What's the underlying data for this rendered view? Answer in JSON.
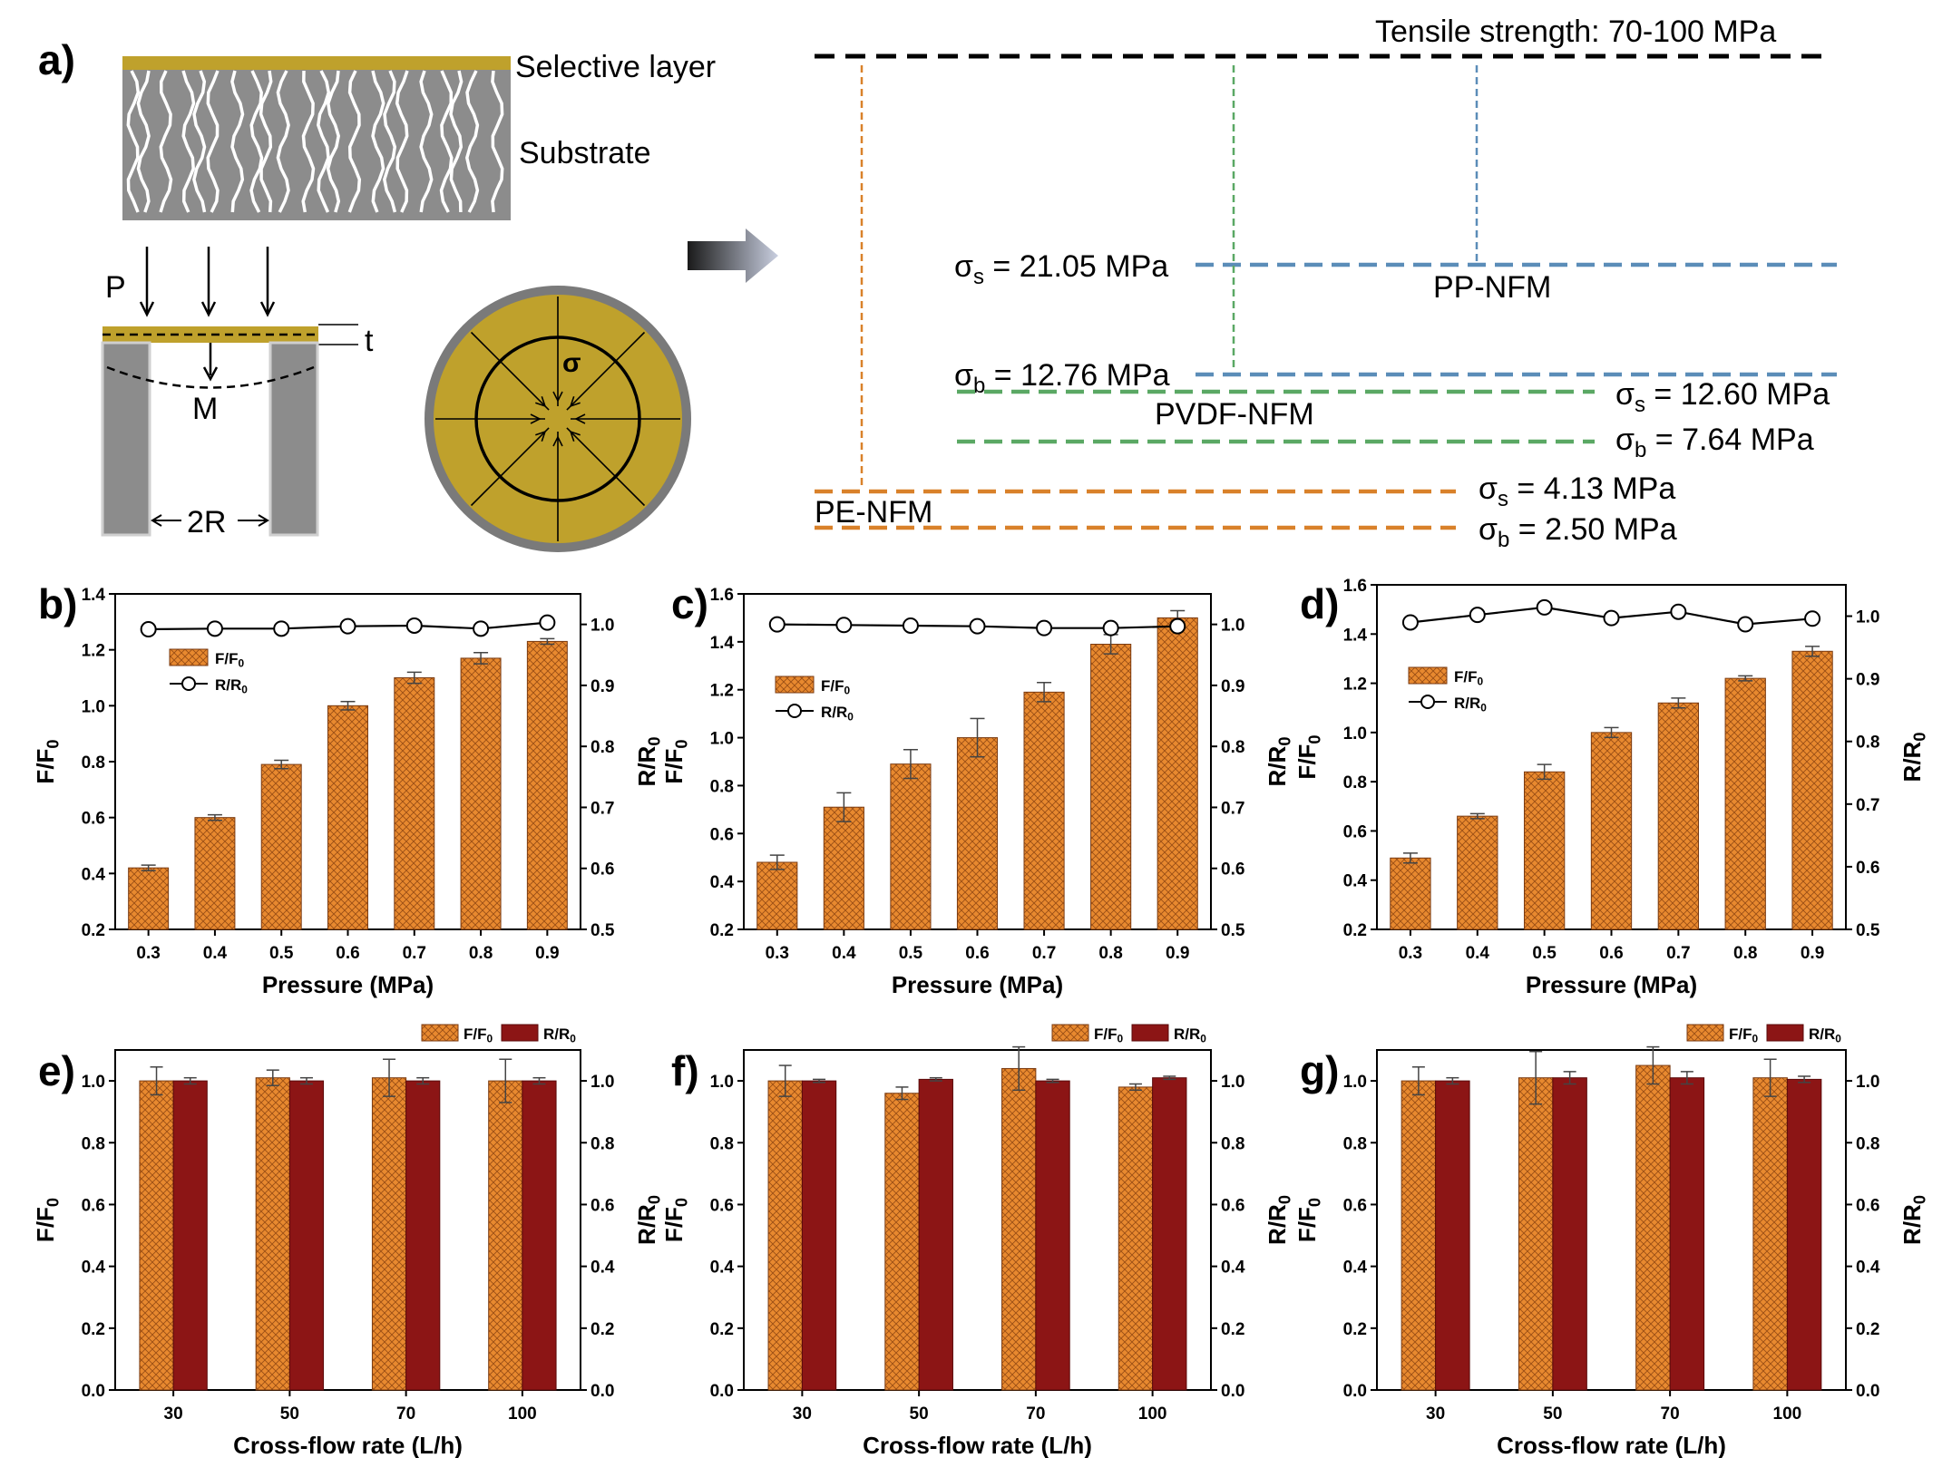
{
  "panel_labels": [
    "a)",
    "b)",
    "c)",
    "d)",
    "e)",
    "f)",
    "g)"
  ],
  "schematic": {
    "selective_layer": "Selective layer",
    "substrate": "Substrate",
    "pressure": "P",
    "thickness": "t",
    "moment": "M",
    "radius": "2R",
    "stress": "σ"
  },
  "strength_diagram": {
    "tensile": "Tensile strength: 70-100 MPa",
    "membranes": [
      {
        "name": "PP-NFM",
        "sigma_s": "σs = 21.05 MPa",
        "sigma_b": "σb = 12.76 MPa",
        "color": "#5b8db8"
      },
      {
        "name": "PVDF-NFM",
        "sigma_s": "σs = 12.60 MPa",
        "sigma_b": "σb = 7.64 MPa",
        "color": "#5aa864"
      },
      {
        "name": "PE-NFM",
        "sigma_s": "σs = 4.13 MPa",
        "sigma_b": "σb = 2.50 MPa",
        "color": "#d9812a"
      }
    ]
  },
  "colors": {
    "bar_orange": "#e8892f",
    "bar_red": "#8c1515",
    "gold": "#bfa12c",
    "gray": "#8c8c8c"
  },
  "chart_data": [
    {
      "panel": "b)",
      "type": "bar",
      "categories": [
        "0.3",
        "0.4",
        "0.5",
        "0.6",
        "0.7",
        "0.8",
        "0.9"
      ],
      "xlabel": "Pressure (MPa)",
      "ylabel": "F/F0",
      "y2label": "R/R0",
      "ylim": [
        0.2,
        1.4
      ],
      "y2lim": [
        0.5,
        1.05
      ],
      "yticks": [
        "0.2",
        "0.4",
        "0.6",
        "0.8",
        "1.0",
        "1.2",
        "1.4"
      ],
      "y2ticks": [
        "0.5",
        "0.6",
        "0.7",
        "0.8",
        "0.9",
        "1.0"
      ],
      "series": [
        {
          "name": "F/F0",
          "type": "bar",
          "values": [
            0.42,
            0.6,
            0.79,
            1.0,
            1.1,
            1.17,
            1.23
          ],
          "errors": [
            0.01,
            0.01,
            0.015,
            0.015,
            0.02,
            0.02,
            0.01
          ]
        },
        {
          "name": "R/R0",
          "type": "line",
          "values": [
            0.992,
            0.993,
            0.993,
            0.997,
            0.998,
            0.993,
            1.003
          ],
          "errors": [
            0.003,
            0.003,
            0.003,
            0.003,
            0.003,
            0.003,
            0.004
          ]
        }
      ],
      "legend": "upper-left"
    },
    {
      "panel": "c)",
      "type": "bar",
      "categories": [
        "0.3",
        "0.4",
        "0.5",
        "0.6",
        "0.7",
        "0.8",
        "0.9"
      ],
      "xlabel": "Pressure (MPa)",
      "ylabel": "F/F0",
      "y2label": "R/R0",
      "ylim": [
        0.2,
        1.6
      ],
      "y2lim": [
        0.5,
        1.05
      ],
      "yticks": [
        "0.2",
        "0.4",
        "0.6",
        "0.8",
        "1.0",
        "1.2",
        "1.4",
        "1.6"
      ],
      "y2ticks": [
        "0.5",
        "0.6",
        "0.7",
        "0.8",
        "0.9",
        "1.0"
      ],
      "series": [
        {
          "name": "F/F0",
          "type": "bar",
          "values": [
            0.48,
            0.71,
            0.89,
            1.0,
            1.19,
            1.39,
            1.5
          ],
          "errors": [
            0.03,
            0.06,
            0.06,
            0.08,
            0.04,
            0.04,
            0.03
          ]
        },
        {
          "name": "R/R0",
          "type": "line",
          "values": [
            1.0,
            0.999,
            0.998,
            0.997,
            0.994,
            0.994,
            0.997
          ],
          "errors": [
            0.003,
            0.003,
            0.003,
            0.003,
            0.003,
            0.003,
            0.003
          ]
        }
      ],
      "legend": "center-left"
    },
    {
      "panel": "d)",
      "type": "bar",
      "categories": [
        "0.3",
        "0.4",
        "0.5",
        "0.6",
        "0.7",
        "0.8",
        "0.9"
      ],
      "xlabel": "Pressure (MPa)",
      "ylabel": "F/F0",
      "y2label": "R/R0",
      "ylim": [
        0.2,
        1.6
      ],
      "y2lim": [
        0.5,
        1.05
      ],
      "yticks": [
        "0.2",
        "0.4",
        "0.6",
        "0.8",
        "1.0",
        "1.2",
        "1.4",
        "1.6"
      ],
      "y2ticks": [
        "0.5",
        "0.6",
        "0.7",
        "0.8",
        "0.9",
        "1.0"
      ],
      "series": [
        {
          "name": "F/F0",
          "type": "bar",
          "values": [
            0.49,
            0.66,
            0.84,
            1.0,
            1.12,
            1.22,
            1.33
          ],
          "errors": [
            0.02,
            0.01,
            0.03,
            0.02,
            0.02,
            0.01,
            0.02
          ]
        },
        {
          "name": "R/R0",
          "type": "line",
          "values": [
            0.99,
            1.002,
            1.014,
            0.997,
            1.007,
            0.987,
            0.996
          ],
          "errors": [
            0.005,
            0.005,
            0.008,
            0.005,
            0.005,
            0.01,
            0.01
          ]
        }
      ],
      "legend": "center-left"
    },
    {
      "panel": "e)",
      "type": "bar",
      "categories": [
        "30",
        "50",
        "70",
        "100"
      ],
      "xlabel": "Cross-flow rate (L/h)",
      "ylabel": "F/F0",
      "y2label": "R/R0",
      "ylim": [
        0,
        1.1
      ],
      "y2lim": [
        0,
        1.1
      ],
      "yticks": [
        "0.0",
        "0.2",
        "0.4",
        "0.6",
        "0.8",
        "1.0"
      ],
      "y2ticks": [
        "0.0",
        "0.2",
        "0.4",
        "0.6",
        "0.8",
        "1.0"
      ],
      "series": [
        {
          "name": "F/F0",
          "type": "bar",
          "values": [
            1.0,
            1.01,
            1.01,
            1.0
          ],
          "errors": [
            0.045,
            0.025,
            0.06,
            0.07
          ]
        },
        {
          "name": "R/R0",
          "type": "bar",
          "values": [
            1.0,
            1.0,
            1.0,
            1.0
          ],
          "errors": [
            0.01,
            0.01,
            0.01,
            0.01
          ]
        }
      ],
      "legend": "top-right"
    },
    {
      "panel": "f)",
      "type": "bar",
      "categories": [
        "30",
        "50",
        "70",
        "100"
      ],
      "xlabel": "Cross-flow rate (L/h)",
      "ylabel": "F/F0",
      "y2label": "R/R0",
      "ylim": [
        0,
        1.1
      ],
      "y2lim": [
        0,
        1.1
      ],
      "yticks": [
        "0.0",
        "0.2",
        "0.4",
        "0.6",
        "0.8",
        "1.0"
      ],
      "y2ticks": [
        "0.0",
        "0.2",
        "0.4",
        "0.6",
        "0.8",
        "1.0"
      ],
      "series": [
        {
          "name": "F/F0",
          "type": "bar",
          "values": [
            1.0,
            0.96,
            1.04,
            0.98
          ],
          "errors": [
            0.05,
            0.02,
            0.07,
            0.01
          ]
        },
        {
          "name": "R/R0",
          "type": "bar",
          "values": [
            1.0,
            1.005,
            1.0,
            1.01
          ],
          "errors": [
            0.005,
            0.005,
            0.005,
            0.005
          ]
        }
      ],
      "legend": "top-right"
    },
    {
      "panel": "g)",
      "type": "bar",
      "categories": [
        "30",
        "50",
        "70",
        "100"
      ],
      "xlabel": "Cross-flow rate (L/h)",
      "ylabel": "F/F0",
      "y2label": "R/R0",
      "ylim": [
        0,
        1.1
      ],
      "y2lim": [
        0,
        1.1
      ],
      "yticks": [
        "0.0",
        "0.2",
        "0.4",
        "0.6",
        "0.8",
        "1.0"
      ],
      "y2ticks": [
        "0.0",
        "0.2",
        "0.4",
        "0.6",
        "0.8",
        "1.0"
      ],
      "series": [
        {
          "name": "F/F0",
          "type": "bar",
          "values": [
            1.0,
            1.01,
            1.05,
            1.01
          ],
          "errors": [
            0.045,
            0.085,
            0.06,
            0.06
          ]
        },
        {
          "name": "R/R0",
          "type": "bar",
          "values": [
            1.0,
            1.01,
            1.01,
            1.005
          ],
          "errors": [
            0.01,
            0.02,
            0.02,
            0.01
          ]
        }
      ],
      "legend": "top-right"
    }
  ]
}
